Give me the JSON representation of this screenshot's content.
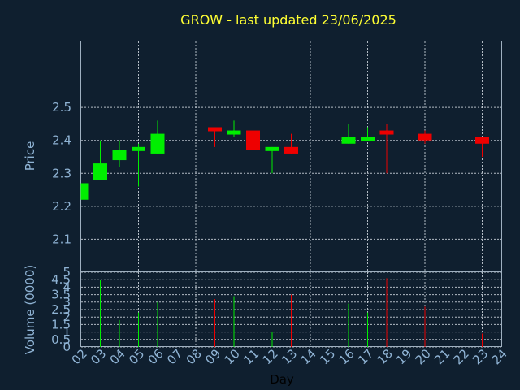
{
  "title": "GROW - last updated 23/06/2025",
  "colors": {
    "background": "#0f1f2f",
    "up": "#00ee00",
    "down": "#ee0000",
    "title": "#ffff33",
    "axis_text": "#8fb3d4"
  },
  "chart_data": {
    "type": "candlestick",
    "title": "GROW - last updated 23/06/2025",
    "xlabel": "Day",
    "ylabel": "Price",
    "volume_label": "Volume (0000)",
    "grid": true,
    "price_ylim": [
      2.0,
      2.7
    ],
    "price_ticks": [
      "2.1",
      "2.2",
      "2.3",
      "2.4",
      "2.5"
    ],
    "volume_ylim": [
      0,
      5
    ],
    "volume_ticks": [
      "0",
      "0.5",
      "1",
      "1.5",
      "2",
      "2.5",
      "3",
      "3.5",
      "4",
      "4.5",
      "5"
    ],
    "x_ticks": [
      "02",
      "03",
      "04",
      "05",
      "06",
      "07",
      "08",
      "09",
      "10",
      "11",
      "12",
      "13",
      "14",
      "15",
      "16",
      "17",
      "18",
      "19",
      "20",
      "21",
      "22",
      "23",
      "24"
    ],
    "candles": [
      {
        "day": "02",
        "open": 2.22,
        "high": 2.27,
        "low": 2.22,
        "close": 2.27,
        "volume": 0.0
      },
      {
        "day": "03",
        "open": 2.28,
        "high": 2.4,
        "low": 2.28,
        "close": 2.33,
        "volume": 4.5
      },
      {
        "day": "04",
        "open": 2.34,
        "high": 2.4,
        "low": 2.32,
        "close": 2.37,
        "volume": 1.8
      },
      {
        "day": "05",
        "open": 2.37,
        "high": 2.39,
        "low": 2.26,
        "close": 2.38,
        "volume": 2.3
      },
      {
        "day": "06",
        "open": 2.36,
        "high": 2.46,
        "low": 2.36,
        "close": 2.42,
        "volume": 3.0
      },
      {
        "day": "09",
        "open": 2.44,
        "high": 2.44,
        "low": 2.38,
        "close": 2.43,
        "volume": 3.2
      },
      {
        "day": "10",
        "open": 2.42,
        "high": 2.46,
        "low": 2.41,
        "close": 2.43,
        "volume": 3.4
      },
      {
        "day": "11",
        "open": 2.43,
        "high": 2.45,
        "low": 2.37,
        "close": 2.37,
        "volume": 1.6
      },
      {
        "day": "12",
        "open": 2.37,
        "high": 2.38,
        "low": 2.3,
        "close": 2.38,
        "volume": 1.0
      },
      {
        "day": "13",
        "open": 2.38,
        "high": 2.42,
        "low": 2.36,
        "close": 2.36,
        "volume": 3.5
      },
      {
        "day": "16",
        "open": 2.39,
        "high": 2.45,
        "low": 2.39,
        "close": 2.41,
        "volume": 2.9
      },
      {
        "day": "17",
        "open": 2.4,
        "high": 2.44,
        "low": 2.4,
        "close": 2.41,
        "volume": 2.3
      },
      {
        "day": "18",
        "open": 2.43,
        "high": 2.45,
        "low": 2.3,
        "close": 2.42,
        "volume": 4.6
      },
      {
        "day": "20",
        "open": 2.42,
        "high": 2.43,
        "low": 2.39,
        "close": 2.4,
        "volume": 2.7
      },
      {
        "day": "23",
        "open": 2.41,
        "high": 2.41,
        "low": 2.35,
        "close": 2.39,
        "volume": 0.9
      }
    ]
  }
}
